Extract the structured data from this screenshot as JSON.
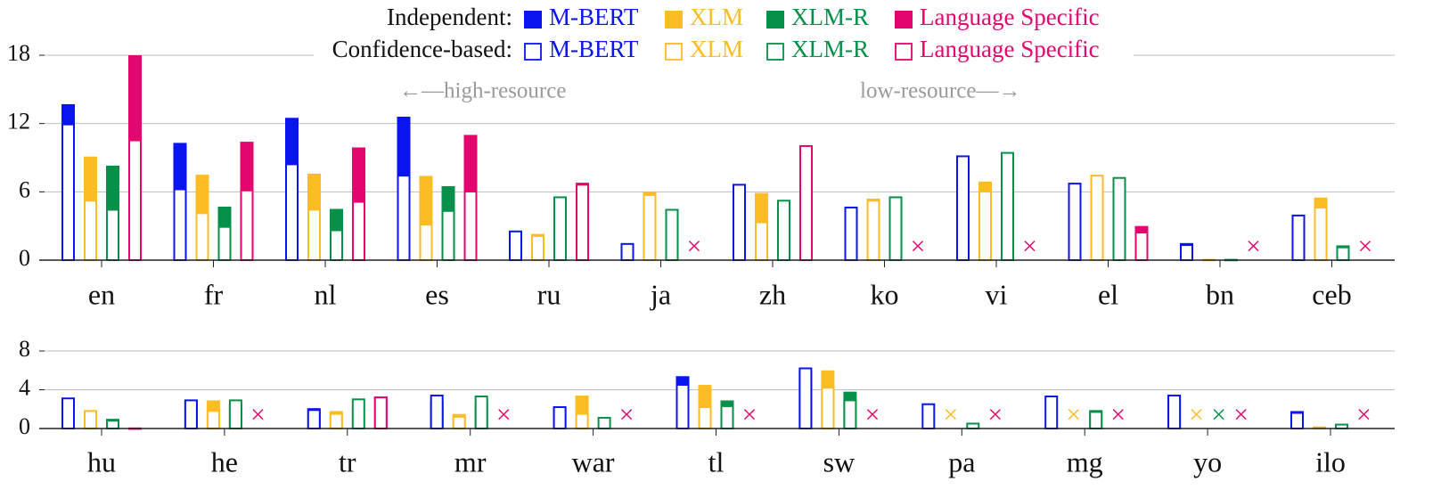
{
  "colors": {
    "mbert": "#0a14f0",
    "xlm": "#fbbc24",
    "xlmr": "#06904a",
    "lang_specific": "#e2066e",
    "grid": "#bebebe",
    "axis": "#222222",
    "annotation": "#9a9a9a"
  },
  "legend": {
    "independent_label": "Independent:",
    "confidence_label": "Confidence-based:",
    "series": [
      "M-BERT",
      "XLM",
      "XLM-R",
      "Language Specific"
    ]
  },
  "annotations": {
    "high_resource": "←—high-resource",
    "low_resource": "low-resource—→",
    "missing_marker": "×"
  },
  "chart_data": [
    {
      "type": "bar",
      "panel": "top",
      "ylim": [
        0,
        18
      ],
      "yticks": [
        0,
        6,
        12,
        18
      ],
      "categories": [
        "en",
        "fr",
        "nl",
        "es",
        "ru",
        "ja",
        "zh",
        "ko",
        "vi",
        "el",
        "bn",
        "ceb"
      ],
      "series": [
        {
          "name": "M-BERT",
          "independent": [
            13.7,
            10.3,
            12.5,
            12.6,
            1.9,
            0.9,
            2.6,
            4.1,
            8.4,
            4.5,
            1.5,
            0
          ],
          "confidence": [
            12.0,
            6.3,
            8.5,
            7.5,
            2.6,
            1.5,
            6.7,
            4.7,
            9.2,
            6.8,
            1.4,
            4.0
          ]
        },
        {
          "name": "XLM",
          "independent": [
            9.1,
            7.5,
            7.6,
            7.4,
            2.3,
            6.0,
            5.9,
            5.4,
            6.9,
            7.2,
            0.1,
            5.5
          ],
          "confidence": [
            5.3,
            4.2,
            4.5,
            3.2,
            2.2,
            5.8,
            3.4,
            5.3,
            6.1,
            7.5,
            0.1,
            4.7
          ]
        },
        {
          "name": "XLM-R",
          "independent": [
            8.3,
            4.7,
            4.5,
            6.5,
            5.4,
            2.4,
            4.6,
            5.2,
            8.5,
            6.3,
            0.1,
            1.3
          ],
          "confidence": [
            4.5,
            3.0,
            2.7,
            4.4,
            5.6,
            4.5,
            5.3,
            5.6,
            9.5,
            7.3,
            0.1,
            1.2
          ]
        },
        {
          "name": "Language Specific",
          "independent": [
            18.0,
            10.4,
            9.9,
            11.0,
            6.8,
            null,
            5.6,
            null,
            null,
            3.0,
            null,
            null
          ],
          "confidence": [
            10.6,
            6.2,
            5.2,
            6.1,
            6.7,
            null,
            10.1,
            null,
            null,
            2.5,
            null,
            null
          ]
        }
      ]
    },
    {
      "type": "bar",
      "panel": "bottom",
      "ylim": [
        0,
        8
      ],
      "yticks": [
        0,
        4,
        8
      ],
      "categories": [
        "hu",
        "he",
        "tr",
        "mr",
        "war",
        "tl",
        "sw",
        "pa",
        "mg",
        "yo",
        "ilo"
      ],
      "series": [
        {
          "name": "M-BERT",
          "independent": [
            2.7,
            2.9,
            2.1,
            2.8,
            2.2,
            5.4,
            6.0,
            0,
            0,
            3.4,
            1.8
          ],
          "confidence": [
            3.2,
            3.0,
            2.0,
            3.5,
            2.3,
            4.6,
            6.3,
            2.6,
            3.4,
            3.5,
            1.7
          ]
        },
        {
          "name": "XLM",
          "independent": [
            1.6,
            2.9,
            1.8,
            1.5,
            3.4,
            4.5,
            6.0,
            null,
            null,
            null,
            0.2
          ],
          "confidence": [
            1.9,
            1.9,
            1.6,
            1.3,
            1.6,
            2.3,
            4.3,
            null,
            null,
            null,
            0.2
          ]
        },
        {
          "name": "XLM-R",
          "independent": [
            1.0,
            2.5,
            0,
            2.8,
            0,
            2.9,
            3.8,
            0,
            1.9,
            null,
            0
          ],
          "confidence": [
            0.9,
            3.0,
            3.1,
            3.4,
            1.2,
            2.4,
            3.0,
            0.6,
            1.8,
            null,
            0.5
          ]
        },
        {
          "name": "Language Specific",
          "independent": [
            0.1,
            null,
            3.3,
            null,
            null,
            null,
            null,
            null,
            null,
            null,
            null
          ],
          "confidence": [
            0.1,
            null,
            3.3,
            null,
            null,
            null,
            null,
            null,
            null,
            null,
            null
          ]
        }
      ]
    }
  ]
}
